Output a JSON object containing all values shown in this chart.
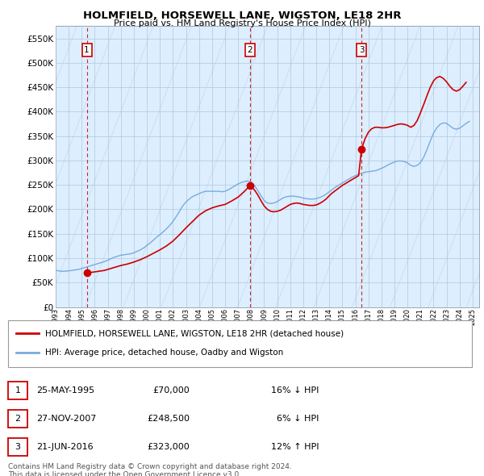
{
  "title": "HOLMFIELD, HORSEWELL LANE, WIGSTON, LE18 2HR",
  "subtitle": "Price paid vs. HM Land Registry's House Price Index (HPI)",
  "ylabel_ticks": [
    "£0",
    "£50K",
    "£100K",
    "£150K",
    "£200K",
    "£250K",
    "£300K",
    "£350K",
    "£400K",
    "£450K",
    "£500K",
    "£550K"
  ],
  "ytick_values": [
    0,
    50000,
    100000,
    150000,
    200000,
    250000,
    300000,
    350000,
    400000,
    450000,
    500000,
    550000
  ],
  "ylim": [
    0,
    575000
  ],
  "xlim_start": 1993.0,
  "xlim_end": 2025.5,
  "sale_dates": [
    1995.39,
    2007.9,
    2016.47
  ],
  "sale_prices": [
    70000,
    248500,
    323000
  ],
  "sale_labels": [
    "1",
    "2",
    "3"
  ],
  "legend_red_label": "HOLMFIELD, HORSEWELL LANE, WIGSTON, LE18 2HR (detached house)",
  "legend_blue_label": "HPI: Average price, detached house, Oadby and Wigston",
  "table_rows": [
    [
      "1",
      "25-MAY-1995",
      "£70,000",
      "16% ↓ HPI"
    ],
    [
      "2",
      "27-NOV-2007",
      "£248,500",
      "6% ↓ HPI"
    ],
    [
      "3",
      "21-JUN-2016",
      "£323,000",
      "12% ↑ HPI"
    ]
  ],
  "footer": "Contains HM Land Registry data © Crown copyright and database right 2024.\nThis data is licensed under the Open Government Licence v3.0.",
  "red_color": "#cc0000",
  "blue_color": "#7aabdc",
  "hpi_data_x": [
    1993.0,
    1993.25,
    1993.5,
    1993.75,
    1994.0,
    1994.25,
    1994.5,
    1994.75,
    1995.0,
    1995.25,
    1995.5,
    1995.75,
    1996.0,
    1996.25,
    1996.5,
    1996.75,
    1997.0,
    1997.25,
    1997.5,
    1997.75,
    1998.0,
    1998.25,
    1998.5,
    1998.75,
    1999.0,
    1999.25,
    1999.5,
    1999.75,
    2000.0,
    2000.25,
    2000.5,
    2000.75,
    2001.0,
    2001.25,
    2001.5,
    2001.75,
    2002.0,
    2002.25,
    2002.5,
    2002.75,
    2003.0,
    2003.25,
    2003.5,
    2003.75,
    2004.0,
    2004.25,
    2004.5,
    2004.75,
    2005.0,
    2005.25,
    2005.5,
    2005.75,
    2006.0,
    2006.25,
    2006.5,
    2006.75,
    2007.0,
    2007.25,
    2007.5,
    2007.75,
    2008.0,
    2008.25,
    2008.5,
    2008.75,
    2009.0,
    2009.25,
    2009.5,
    2009.75,
    2010.0,
    2010.25,
    2010.5,
    2010.75,
    2011.0,
    2011.25,
    2011.5,
    2011.75,
    2012.0,
    2012.25,
    2012.5,
    2012.75,
    2013.0,
    2013.25,
    2013.5,
    2013.75,
    2014.0,
    2014.25,
    2014.5,
    2014.75,
    2015.0,
    2015.25,
    2015.5,
    2015.75,
    2016.0,
    2016.25,
    2016.5,
    2016.75,
    2017.0,
    2017.25,
    2017.5,
    2017.75,
    2018.0,
    2018.25,
    2018.5,
    2018.75,
    2019.0,
    2019.25,
    2019.5,
    2019.75,
    2020.0,
    2020.25,
    2020.5,
    2020.75,
    2021.0,
    2021.25,
    2021.5,
    2021.75,
    2022.0,
    2022.25,
    2022.5,
    2022.75,
    2023.0,
    2023.25,
    2023.5,
    2023.75,
    2024.0,
    2024.25,
    2024.5,
    2024.75
  ],
  "hpi_data_y": [
    75000,
    74000,
    73000,
    73500,
    74000,
    75000,
    76000,
    77000,
    79000,
    81000,
    83000,
    85000,
    87000,
    89000,
    91000,
    93000,
    96000,
    99000,
    102000,
    104000,
    106000,
    107000,
    108000,
    109000,
    111000,
    114000,
    117000,
    121000,
    126000,
    131000,
    137000,
    143000,
    148000,
    154000,
    160000,
    167000,
    175000,
    185000,
    196000,
    207000,
    215000,
    221000,
    226000,
    229000,
    232000,
    235000,
    237000,
    237000,
    237000,
    237000,
    237000,
    236000,
    237000,
    240000,
    244000,
    248000,
    252000,
    255000,
    257000,
    258000,
    256000,
    249000,
    239000,
    228000,
    218000,
    213000,
    212000,
    213000,
    216000,
    220000,
    224000,
    226000,
    227000,
    227000,
    226000,
    225000,
    223000,
    222000,
    221000,
    221000,
    222000,
    224000,
    227000,
    231000,
    236000,
    241000,
    246000,
    250000,
    254000,
    258000,
    262000,
    266000,
    269000,
    272000,
    274000,
    276000,
    277000,
    278000,
    279000,
    281000,
    284000,
    287000,
    291000,
    294000,
    297000,
    299000,
    299000,
    298000,
    295000,
    290000,
    288000,
    290000,
    296000,
    307000,
    323000,
    340000,
    356000,
    367000,
    374000,
    377000,
    376000,
    371000,
    366000,
    364000,
    366000,
    371000,
    376000,
    380000
  ],
  "price_line_x": [
    1995.39,
    1995.5,
    1995.75,
    1996.0,
    1996.25,
    1996.5,
    1996.75,
    1997.0,
    1997.25,
    1997.5,
    1997.75,
    1998.0,
    1998.5,
    1999.0,
    1999.5,
    2000.0,
    2000.5,
    2001.0,
    2001.5,
    2002.0,
    2002.5,
    2003.0,
    2003.5,
    2004.0,
    2004.5,
    2005.0,
    2005.5,
    2006.0,
    2006.5,
    2007.0,
    2007.5,
    2007.9,
    2008.0,
    2008.25,
    2008.5,
    2008.75,
    2009.0,
    2009.25,
    2009.5,
    2009.75,
    2010.0,
    2010.25,
    2010.5,
    2010.75,
    2011.0,
    2011.25,
    2011.5,
    2011.75,
    2012.0,
    2012.25,
    2012.5,
    2012.75,
    2013.0,
    2013.25,
    2013.5,
    2013.75,
    2014.0,
    2014.25,
    2014.5,
    2014.75,
    2015.0,
    2015.25,
    2015.5,
    2015.75,
    2016.0,
    2016.25,
    2016.47,
    2016.75,
    2017.0,
    2017.25,
    2017.5,
    2017.75,
    2018.0,
    2018.25,
    2018.5,
    2018.75,
    2019.0,
    2019.25,
    2019.5,
    2019.75,
    2020.0,
    2020.25,
    2020.5,
    2020.75,
    2021.0,
    2021.25,
    2021.5,
    2021.75,
    2022.0,
    2022.25,
    2022.5,
    2022.75,
    2023.0,
    2023.25,
    2023.5,
    2023.75,
    2024.0,
    2024.25,
    2024.5
  ],
  "price_line_y": [
    70000,
    70500,
    71000,
    72000,
    73000,
    74000,
    75000,
    77000,
    79000,
    81000,
    83000,
    85000,
    88000,
    92000,
    97000,
    103000,
    110000,
    117000,
    125000,
    135000,
    148000,
    162000,
    175000,
    188000,
    197000,
    203000,
    207000,
    210000,
    217000,
    225000,
    237000,
    248500,
    247000,
    240000,
    230000,
    218000,
    207000,
    200000,
    196000,
    195000,
    196000,
    198000,
    202000,
    206000,
    210000,
    212000,
    213000,
    212000,
    210000,
    209000,
    208000,
    208000,
    209000,
    212000,
    216000,
    221000,
    228000,
    234000,
    239000,
    244000,
    249000,
    253000,
    257000,
    261000,
    265000,
    269000,
    323000,
    345000,
    358000,
    365000,
    368000,
    368000,
    367000,
    367000,
    368000,
    370000,
    372000,
    374000,
    375000,
    374000,
    372000,
    368000,
    372000,
    382000,
    398000,
    415000,
    433000,
    450000,
    463000,
    470000,
    472000,
    468000,
    461000,
    452000,
    445000,
    442000,
    445000,
    452000,
    460000
  ]
}
